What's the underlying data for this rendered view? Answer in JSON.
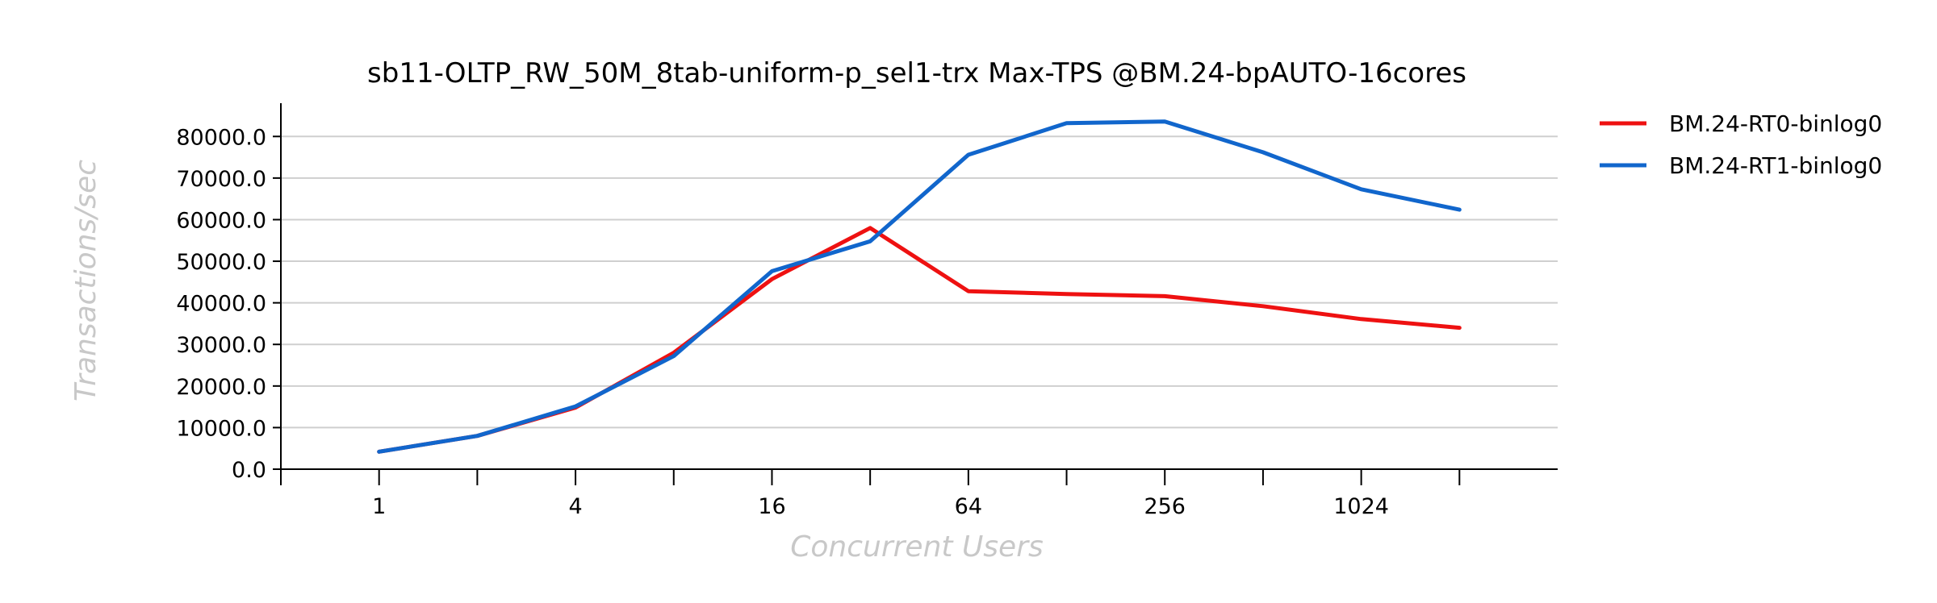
{
  "chart_data": {
    "type": "line",
    "title": "sb11-OLTP_RW_50M_8tab-uniform-p_sel1-trx Max-TPS @BM.24-bpAUTO-16cores",
    "xlabel": "Concurrent Users",
    "ylabel": "Transactions/sec",
    "x_scale": "log2",
    "x": [
      1,
      2,
      4,
      8,
      16,
      32,
      64,
      128,
      256,
      512,
      1024,
      2048
    ],
    "x_tick_labels": [
      "1",
      "4",
      "16",
      "64",
      "256",
      "1024"
    ],
    "x_tick_label_values": [
      1,
      4,
      16,
      64,
      256,
      1024
    ],
    "xlim": [
      0.5,
      4096
    ],
    "y_ticks": [
      0,
      10000,
      20000,
      30000,
      40000,
      50000,
      60000,
      70000,
      80000
    ],
    "y_tick_labels": [
      "0.0",
      "10000.0",
      "20000.0",
      "30000.0",
      "40000.0",
      "50000.0",
      "60000.0",
      "70000.0",
      "80000.0"
    ],
    "ylim": [
      0,
      88000
    ],
    "grid": true,
    "legend_position": "top-right outside",
    "series": [
      {
        "name": "BM.24-RT0-binlog0",
        "color": "#ee1111",
        "values": [
          4200,
          8000,
          14800,
          28000,
          45700,
          58000,
          42800,
          42100,
          41600,
          39200,
          36100,
          34000
        ]
      },
      {
        "name": "BM.24-RT1-binlog0",
        "color": "#1166cc",
        "values": [
          4200,
          8000,
          15100,
          27200,
          47600,
          54800,
          75600,
          83200,
          83600,
          76200,
          67300,
          62400
        ]
      }
    ]
  }
}
